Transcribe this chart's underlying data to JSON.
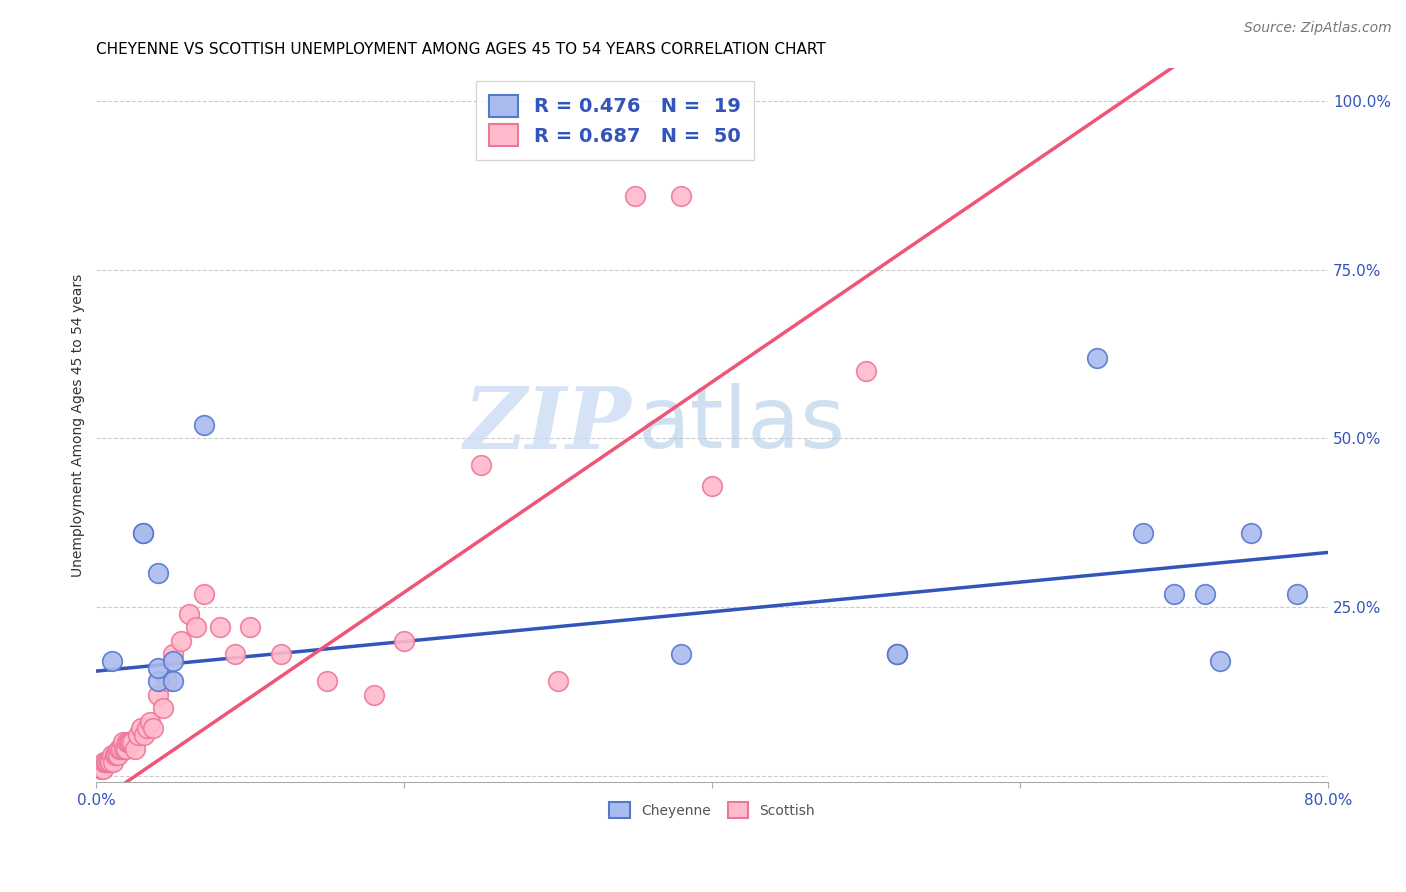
{
  "title": "CHEYENNE VS SCOTTISH UNEMPLOYMENT AMONG AGES 45 TO 54 YEARS CORRELATION CHART",
  "source": "Source: ZipAtlas.com",
  "ylabel": "Unemployment Among Ages 45 to 54 years",
  "xlim": [
    0.0,
    0.8
  ],
  "ylim": [
    -0.01,
    1.05
  ],
  "xticks": [
    0.0,
    0.2,
    0.4,
    0.6,
    0.8
  ],
  "xticklabels": [
    "0.0%",
    "",
    "",
    "",
    "80.0%"
  ],
  "yticks": [
    0.0,
    0.25,
    0.5,
    0.75,
    1.0
  ],
  "yticklabels": [
    "",
    "25.0%",
    "50.0%",
    "75.0%",
    "100.0%"
  ],
  "cheyenne_color": "#aabbee",
  "scottish_color": "#ffbbcc",
  "cheyenne_edge_color": "#5577cc",
  "scottish_edge_color": "#ee7799",
  "cheyenne_line_color": "#3355bb",
  "scottish_line_color": "#ee5577",
  "legend_R_cheyenne": "R = 0.476",
  "legend_N_cheyenne": "N =  19",
  "legend_R_scottish": "R = 0.687",
  "legend_N_scottish": "N =  50",
  "watermark_zip": "ZIP",
  "watermark_atlas": "atlas",
  "cheyenne_x": [
    0.01,
    0.03,
    0.03,
    0.04,
    0.04,
    0.04,
    0.05,
    0.05,
    0.07,
    0.38,
    0.52,
    0.65,
    0.68,
    0.7,
    0.72,
    0.73,
    0.75,
    0.78,
    0.52
  ],
  "cheyenne_y": [
    0.17,
    0.36,
    0.36,
    0.3,
    0.14,
    0.16,
    0.14,
    0.17,
    0.52,
    0.18,
    0.18,
    0.62,
    0.36,
    0.27,
    0.27,
    0.17,
    0.36,
    0.27,
    0.18
  ],
  "scottish_x": [
    0.003,
    0.004,
    0.005,
    0.006,
    0.007,
    0.008,
    0.009,
    0.01,
    0.011,
    0.012,
    0.013,
    0.014,
    0.015,
    0.016,
    0.017,
    0.018,
    0.019,
    0.02,
    0.021,
    0.022,
    0.023,
    0.025,
    0.027,
    0.029,
    0.031,
    0.033,
    0.035,
    0.037,
    0.04,
    0.043,
    0.046,
    0.05,
    0.055,
    0.06,
    0.065,
    0.07,
    0.08,
    0.09,
    0.1,
    0.12,
    0.15,
    0.18,
    0.2,
    0.25,
    0.3,
    0.35,
    0.38,
    0.4,
    0.5,
    0.52
  ],
  "scottish_y": [
    0.01,
    0.01,
    0.02,
    0.02,
    0.02,
    0.02,
    0.02,
    0.03,
    0.02,
    0.03,
    0.03,
    0.03,
    0.04,
    0.04,
    0.05,
    0.04,
    0.04,
    0.05,
    0.05,
    0.05,
    0.05,
    0.04,
    0.06,
    0.07,
    0.06,
    0.07,
    0.08,
    0.07,
    0.12,
    0.1,
    0.14,
    0.18,
    0.2,
    0.24,
    0.22,
    0.27,
    0.22,
    0.18,
    0.22,
    0.18,
    0.14,
    0.12,
    0.2,
    0.46,
    0.14,
    0.86,
    0.86,
    0.43,
    0.6,
    0.18
  ],
  "title_fontsize": 11,
  "axis_label_fontsize": 10,
  "tick_fontsize": 11,
  "legend_fontsize": 14,
  "source_fontsize": 10,
  "cheyenne_line_slope": 0.22,
  "cheyenne_line_intercept": 0.155,
  "scottish_line_slope": 1.56,
  "scottish_line_intercept": -0.04
}
